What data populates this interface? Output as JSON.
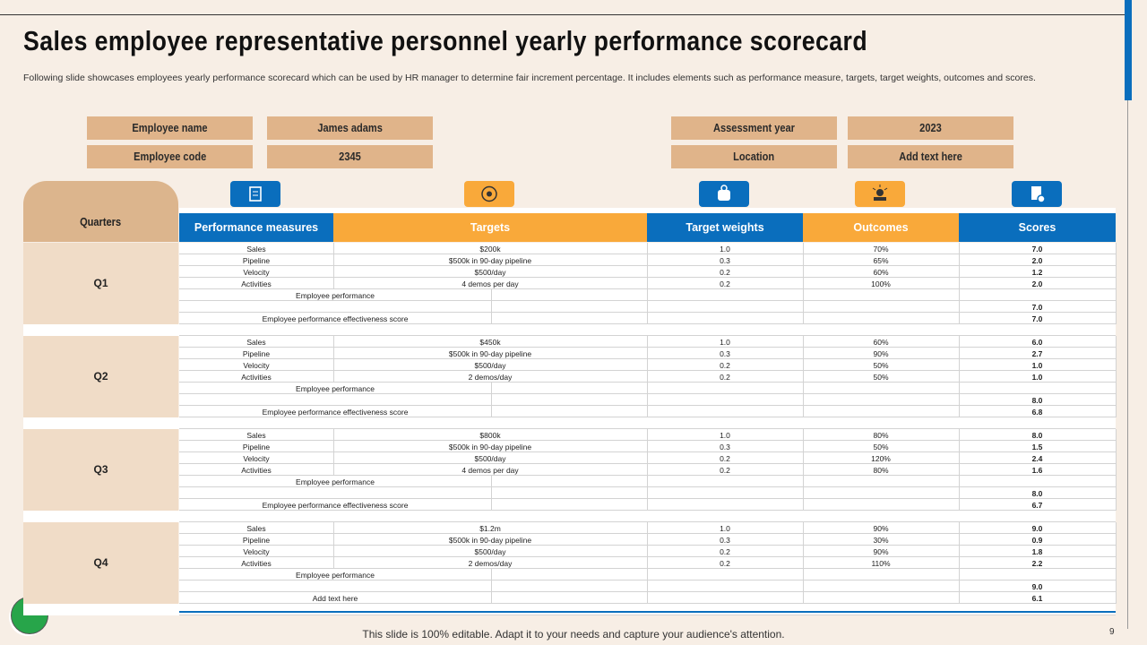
{
  "header": {
    "title": "Sales employee representative personnel yearly performance scorecard",
    "subtitle": "Following slide showcases employees yearly performance scorecard which can be used by HR manager to determine fair increment percentage. It includes elements such as performance measure, targets, target weights, outcomes and scores."
  },
  "info": {
    "left": [
      [
        "Employee name",
        "James adams"
      ],
      [
        "Employee code",
        "2345"
      ]
    ],
    "right": [
      [
        "Assessment year",
        "2023"
      ],
      [
        "Location",
        "Add text here"
      ]
    ]
  },
  "table": {
    "quarters_header": "Quarters",
    "columns": [
      "Performance measures",
      "Targets",
      "Target weights",
      "Outcomes",
      "Scores"
    ],
    "quarters": [
      {
        "label": "Q1",
        "rows": [
          [
            "Sales",
            "$200k",
            "1.0",
            "70%",
            "7.0"
          ],
          [
            "Pipeline",
            "$500k in 90-day pipeline",
            "0.3",
            "65%",
            "2.0"
          ],
          [
            "Velocity",
            "$500/day",
            "0.2",
            "60%",
            "1.2"
          ],
          [
            "Activities",
            "4 demos per day",
            "0.2",
            "100%",
            "2.0"
          ]
        ],
        "employee_performance": {
          "label": "Employee performance",
          "score": "7.0"
        },
        "effectiveness": {
          "label": "Employee performance effectiveness score",
          "score": "7.0"
        }
      },
      {
        "label": "Q2",
        "rows": [
          [
            "Sales",
            "$450k",
            "1.0",
            "60%",
            "6.0"
          ],
          [
            "Pipeline",
            "$500k in 90-day pipeline",
            "0.3",
            "90%",
            "2.7"
          ],
          [
            "Velocity",
            "$500/day",
            "0.2",
            "50%",
            "1.0"
          ],
          [
            "Activities",
            "2 demos/day",
            "0.2",
            "50%",
            "1.0"
          ]
        ],
        "employee_performance": {
          "label": "Employee performance",
          "score": "8.0"
        },
        "effectiveness": {
          "label": "Employee performance effectiveness score",
          "score": "6.8"
        }
      },
      {
        "label": "Q3",
        "rows": [
          [
            "Sales",
            "$800k",
            "1.0",
            "80%",
            "8.0"
          ],
          [
            "Pipeline",
            "$500k in 90-day pipeline",
            "0.3",
            "50%",
            "1.5"
          ],
          [
            "Velocity",
            "$500/day",
            "0.2",
            "120%",
            "2.4"
          ],
          [
            "Activities",
            "4 demos per day",
            "0.2",
            "80%",
            "1.6"
          ]
        ],
        "employee_performance": {
          "label": "Employee performance",
          "score": "8.0"
        },
        "effectiveness": {
          "label": "Employee performance effectiveness score",
          "score": "6.7"
        }
      },
      {
        "label": "Q4",
        "rows": [
          [
            "Sales",
            "$1.2m",
            "1.0",
            "90%",
            "9.0"
          ],
          [
            "Pipeline",
            "$500k in 90-day pipeline",
            "0.3",
            "30%",
            "0.9"
          ],
          [
            "Velocity",
            "$500/day",
            "0.2",
            "90%",
            "1.8"
          ],
          [
            "Activities",
            "2 demos/day",
            "0.2",
            "110%",
            "2.2"
          ]
        ],
        "employee_performance": {
          "label": "Employee performance",
          "score": "9.0"
        },
        "effectiveness": {
          "label": "Add text here",
          "score": "6.1"
        }
      }
    ]
  },
  "footer": {
    "note": "This slide is 100% editable. Adapt it to your needs and capture your audience's attention.",
    "page": "9"
  }
}
